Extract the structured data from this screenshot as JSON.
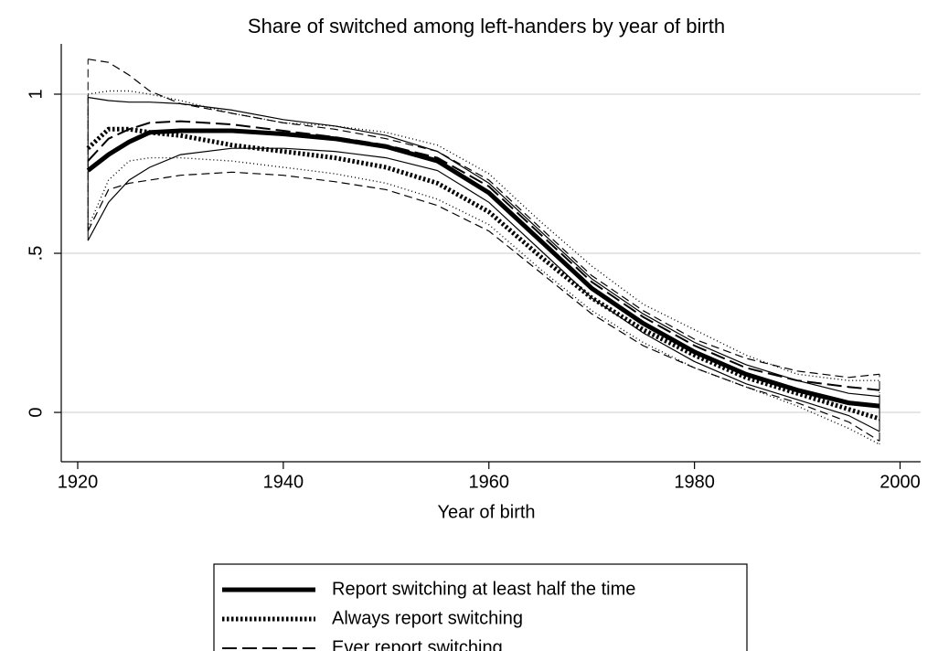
{
  "chart_data": {
    "type": "line",
    "title": "Share of switched among left-handers by year of birth",
    "x_label": "Year of birth",
    "x": [
      1921,
      1923,
      1925,
      1927,
      1930,
      1935,
      1940,
      1945,
      1950,
      1955,
      1960,
      1965,
      1970,
      1975,
      1980,
      1985,
      1990,
      1995,
      1998
    ],
    "series": [
      {
        "name": "Report switching at least half the time",
        "color": "#000000",
        "line_style": "solid",
        "values": [
          0.76,
          0.81,
          0.85,
          0.88,
          0.885,
          0.885,
          0.875,
          0.86,
          0.835,
          0.79,
          0.69,
          0.54,
          0.39,
          0.28,
          0.19,
          0.12,
          0.07,
          0.03,
          0.02
        ],
        "upper": [
          0.99,
          0.98,
          0.975,
          0.975,
          0.97,
          0.95,
          0.92,
          0.9,
          0.87,
          0.82,
          0.72,
          0.57,
          0.42,
          0.31,
          0.22,
          0.15,
          0.1,
          0.06,
          0.05
        ],
        "lower": [
          0.54,
          0.66,
          0.73,
          0.77,
          0.81,
          0.83,
          0.83,
          0.82,
          0.8,
          0.76,
          0.66,
          0.51,
          0.36,
          0.25,
          0.16,
          0.09,
          0.04,
          -0.01,
          -0.06
        ]
      },
      {
        "name": "Always report switching",
        "color": "#000000",
        "line_style": "dotted",
        "values": [
          0.83,
          0.89,
          0.89,
          0.88,
          0.87,
          0.84,
          0.82,
          0.8,
          0.77,
          0.72,
          0.63,
          0.49,
          0.36,
          0.26,
          0.18,
          0.11,
          0.06,
          0.01,
          -0.02
        ],
        "upper": [
          1.0,
          1.01,
          1.01,
          1.0,
          0.98,
          0.94,
          0.91,
          0.9,
          0.88,
          0.84,
          0.75,
          0.6,
          0.46,
          0.34,
          0.26,
          0.18,
          0.12,
          0.1,
          0.1
        ],
        "lower": [
          0.58,
          0.73,
          0.79,
          0.8,
          0.8,
          0.79,
          0.77,
          0.75,
          0.72,
          0.67,
          0.59,
          0.45,
          0.32,
          0.22,
          0.14,
          0.08,
          0.02,
          -0.05,
          -0.1
        ]
      },
      {
        "name": "Ever report switching",
        "color": "#000000",
        "line_style": "dashed",
        "values": [
          0.79,
          0.86,
          0.89,
          0.91,
          0.915,
          0.905,
          0.885,
          0.865,
          0.84,
          0.8,
          0.71,
          0.56,
          0.41,
          0.3,
          0.21,
          0.14,
          0.1,
          0.08,
          0.07
        ],
        "upper": [
          1.11,
          1.1,
          1.06,
          1.01,
          0.97,
          0.94,
          0.91,
          0.89,
          0.86,
          0.82,
          0.73,
          0.58,
          0.43,
          0.32,
          0.23,
          0.17,
          0.13,
          0.11,
          0.12
        ],
        "lower": [
          0.57,
          0.7,
          0.72,
          0.73,
          0.745,
          0.755,
          0.745,
          0.725,
          0.7,
          0.65,
          0.57,
          0.44,
          0.31,
          0.21,
          0.14,
          0.08,
          0.03,
          -0.03,
          -0.09
        ]
      }
    ],
    "xlim": [
      1918.4,
      2002
    ],
    "xticks": [
      1920,
      1940,
      1960,
      1980,
      2000
    ],
    "ylim": [
      -0.155,
      1.158
    ],
    "yticks": [
      0,
      {
        "value": 0.5,
        "label": ".5"
      },
      1
    ],
    "grid": true,
    "legend": "bottom"
  }
}
